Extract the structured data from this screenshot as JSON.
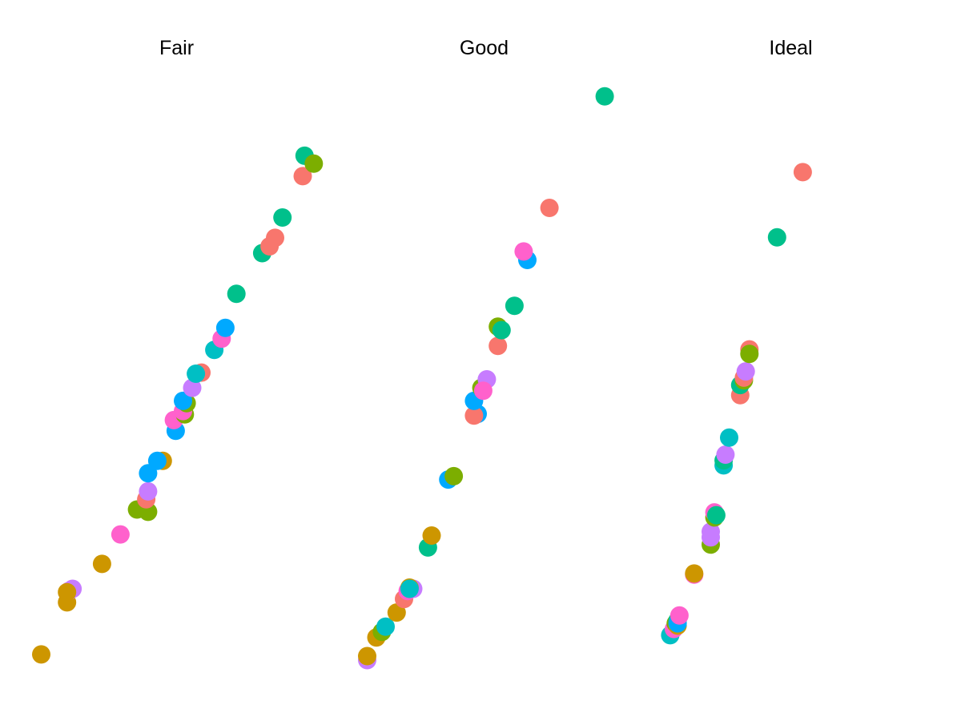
{
  "chart_data": {
    "type": "scatter",
    "facets": [
      {
        "title": "Fair",
        "points": [
          {
            "x": 0.1,
            "y": 0.14,
            "color": "#CD9600"
          },
          {
            "x": 0.24,
            "y": 1.06,
            "color": "#CD9600"
          },
          {
            "x": 0.27,
            "y": 1.3,
            "color": "#C77CFF"
          },
          {
            "x": 0.25,
            "y": 1.26,
            "color": "#C77CFF"
          },
          {
            "x": 0.24,
            "y": 1.24,
            "color": "#CD9600"
          },
          {
            "x": 0.43,
            "y": 1.74,
            "color": "#CD9600"
          },
          {
            "x": 0.53,
            "y": 2.26,
            "color": "#FF61CC"
          },
          {
            "x": 0.62,
            "y": 2.7,
            "color": "#7CAE00"
          },
          {
            "x": 0.68,
            "y": 2.66,
            "color": "#7CAE00"
          },
          {
            "x": 0.67,
            "y": 2.88,
            "color": "#F8766D"
          },
          {
            "x": 0.68,
            "y": 3.02,
            "color": "#C77CFF"
          },
          {
            "x": 0.68,
            "y": 3.34,
            "color": "#00A9FF"
          },
          {
            "x": 0.76,
            "y": 3.56,
            "color": "#CD9600"
          },
          {
            "x": 0.73,
            "y": 3.56,
            "color": "#00A9FF"
          },
          {
            "x": 0.83,
            "y": 4.09,
            "color": "#00A9FF"
          },
          {
            "x": 0.82,
            "y": 4.28,
            "color": "#FF61CC"
          },
          {
            "x": 0.88,
            "y": 4.38,
            "color": "#7CAE00"
          },
          {
            "x": 0.87,
            "y": 4.44,
            "color": "#FF61CC"
          },
          {
            "x": 0.89,
            "y": 4.58,
            "color": "#7CAE00"
          },
          {
            "x": 0.87,
            "y": 4.62,
            "color": "#00A9FF"
          },
          {
            "x": 0.92,
            "y": 4.85,
            "color": "#C77CFF"
          },
          {
            "x": 0.97,
            "y": 5.12,
            "color": "#F8766D"
          },
          {
            "x": 0.94,
            "y": 5.1,
            "color": "#00BFC4"
          },
          {
            "x": 1.04,
            "y": 5.52,
            "color": "#00BFC4"
          },
          {
            "x": 1.08,
            "y": 5.72,
            "color": "#FF61CC"
          },
          {
            "x": 1.1,
            "y": 5.91,
            "color": "#00A9FF"
          },
          {
            "x": 1.16,
            "y": 6.51,
            "color": "#00C08B"
          },
          {
            "x": 1.3,
            "y": 7.23,
            "color": "#00C08B"
          },
          {
            "x": 1.34,
            "y": 7.35,
            "color": "#F8766D"
          },
          {
            "x": 1.37,
            "y": 7.5,
            "color": "#F8766D"
          },
          {
            "x": 1.41,
            "y": 7.86,
            "color": "#00C08B"
          },
          {
            "x": 1.52,
            "y": 8.59,
            "color": "#F8766D"
          },
          {
            "x": 1.53,
            "y": 8.95,
            "color": "#00C08B"
          },
          {
            "x": 1.58,
            "y": 8.81,
            "color": "#7CAE00"
          }
        ]
      },
      {
        "title": "Good",
        "points": [
          {
            "x": 0.2,
            "y": 0.04,
            "color": "#C77CFF"
          },
          {
            "x": 0.2,
            "y": 0.11,
            "color": "#CD9600"
          },
          {
            "x": 0.25,
            "y": 0.44,
            "color": "#CD9600"
          },
          {
            "x": 0.28,
            "y": 0.54,
            "color": "#7CAE00"
          },
          {
            "x": 0.3,
            "y": 0.63,
            "color": "#00BFC4"
          },
          {
            "x": 0.36,
            "y": 0.88,
            "color": "#CD9600"
          },
          {
            "x": 0.4,
            "y": 1.12,
            "color": "#F8766D"
          },
          {
            "x": 0.42,
            "y": 1.26,
            "color": "#FF61CC"
          },
          {
            "x": 0.45,
            "y": 1.3,
            "color": "#C77CFF"
          },
          {
            "x": 0.43,
            "y": 1.32,
            "color": "#CD9600"
          },
          {
            "x": 0.43,
            "y": 1.3,
            "color": "#00BFC4"
          },
          {
            "x": 0.53,
            "y": 2.03,
            "color": "#00C08B"
          },
          {
            "x": 0.55,
            "y": 2.24,
            "color": "#CD9600"
          },
          {
            "x": 0.64,
            "y": 3.23,
            "color": "#00A9FF"
          },
          {
            "x": 0.67,
            "y": 3.29,
            "color": "#7CAE00"
          },
          {
            "x": 0.8,
            "y": 4.39,
            "color": "#00A9FF"
          },
          {
            "x": 0.78,
            "y": 4.36,
            "color": "#F8766D"
          },
          {
            "x": 0.78,
            "y": 4.62,
            "color": "#00A9FF"
          },
          {
            "x": 0.82,
            "y": 4.85,
            "color": "#7CAE00"
          },
          {
            "x": 0.85,
            "y": 5.0,
            "color": "#C77CFF"
          },
          {
            "x": 0.83,
            "y": 4.8,
            "color": "#FF61CC"
          },
          {
            "x": 0.91,
            "y": 5.59,
            "color": "#F8766D"
          },
          {
            "x": 0.91,
            "y": 5.93,
            "color": "#7CAE00"
          },
          {
            "x": 0.93,
            "y": 5.87,
            "color": "#00C08B"
          },
          {
            "x": 1.0,
            "y": 6.3,
            "color": "#00C08B"
          },
          {
            "x": 1.07,
            "y": 7.11,
            "color": "#00A9FF"
          },
          {
            "x": 1.05,
            "y": 7.26,
            "color": "#FF61CC"
          },
          {
            "x": 1.19,
            "y": 8.03,
            "color": "#F8766D"
          },
          {
            "x": 1.49,
            "y": 10.0,
            "color": "#00C08B"
          }
        ]
      },
      {
        "title": "Ideal",
        "points": [
          {
            "x": 0.18,
            "y": 0.48,
            "color": "#00BFC4"
          },
          {
            "x": 0.2,
            "y": 0.59,
            "color": "#FF61CC"
          },
          {
            "x": 0.21,
            "y": 0.69,
            "color": "#7CAE00"
          },
          {
            "x": 0.22,
            "y": 0.65,
            "color": "#CD9600"
          },
          {
            "x": 0.22,
            "y": 0.74,
            "color": "#00C08B"
          },
          {
            "x": 0.22,
            "y": 0.69,
            "color": "#00A9FF"
          },
          {
            "x": 0.23,
            "y": 0.83,
            "color": "#FF61CC"
          },
          {
            "x": 0.31,
            "y": 1.55,
            "color": "#FF61CC"
          },
          {
            "x": 0.31,
            "y": 1.57,
            "color": "#CD9600"
          },
          {
            "x": 0.4,
            "y": 2.08,
            "color": "#7CAE00"
          },
          {
            "x": 0.4,
            "y": 2.21,
            "color": "#C77CFF"
          },
          {
            "x": 0.4,
            "y": 2.31,
            "color": "#C77CFF"
          },
          {
            "x": 0.42,
            "y": 2.56,
            "color": "#7CAE00"
          },
          {
            "x": 0.42,
            "y": 2.65,
            "color": "#FF61CC"
          },
          {
            "x": 0.43,
            "y": 2.6,
            "color": "#00C08B"
          },
          {
            "x": 0.47,
            "y": 3.48,
            "color": "#00BFC4"
          },
          {
            "x": 0.47,
            "y": 3.57,
            "color": "#00C08B"
          },
          {
            "x": 0.48,
            "y": 3.67,
            "color": "#C77CFF"
          },
          {
            "x": 0.5,
            "y": 3.97,
            "color": "#00BFC4"
          },
          {
            "x": 0.56,
            "y": 4.72,
            "color": "#F8766D"
          },
          {
            "x": 0.56,
            "y": 4.9,
            "color": "#00C08B"
          },
          {
            "x": 0.58,
            "y": 4.98,
            "color": "#7CAE00"
          },
          {
            "x": 0.58,
            "y": 5.03,
            "color": "#F8766D"
          },
          {
            "x": 0.59,
            "y": 5.14,
            "color": "#C77CFF"
          },
          {
            "x": 0.61,
            "y": 5.53,
            "color": "#F8766D"
          },
          {
            "x": 0.61,
            "y": 5.45,
            "color": "#7CAE00"
          },
          {
            "x": 0.76,
            "y": 7.51,
            "color": "#00C08B"
          },
          {
            "x": 0.9,
            "y": 8.66,
            "color": "#F8766D"
          }
        ]
      }
    ],
    "xlim": [
      0.05,
      1.62
    ],
    "ylim": [
      -0.3,
      10.4
    ],
    "xlabel": "",
    "ylabel": "",
    "grid": false,
    "legend": "none"
  }
}
